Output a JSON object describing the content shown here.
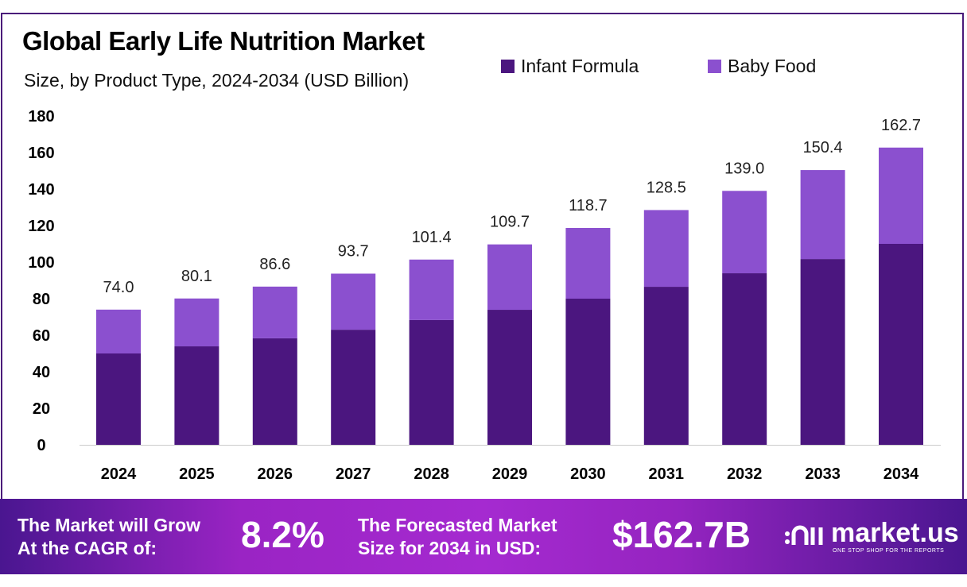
{
  "title": "Global Early Life Nutrition Market",
  "subtitle": "Size, by Product Type, 2024-2034 (USD Billion)",
  "colors": {
    "infant_formula": "#4b167f",
    "baby_food": "#8b50cf"
  },
  "chart_data": {
    "type": "bar",
    "stacked": true,
    "title": "Global Early Life Nutrition Market",
    "subtitle": "Size, by Product Type, 2024-2034 (USD Billion)",
    "categories": [
      "2024",
      "2025",
      "2026",
      "2027",
      "2028",
      "2029",
      "2030",
      "2031",
      "2032",
      "2033",
      "2034"
    ],
    "series": [
      {
        "name": "Infant Formula",
        "values": [
          50.0,
          53.9,
          58.3,
          63.0,
          68.3,
          73.9,
          80.0,
          86.5,
          93.9,
          101.7,
          110.0
        ]
      },
      {
        "name": "Baby Food",
        "values": [
          24.0,
          26.2,
          28.3,
          30.7,
          33.1,
          35.8,
          38.7,
          42.0,
          45.1,
          48.7,
          52.7
        ]
      }
    ],
    "totals": [
      "74.0",
      "80.1",
      "86.6",
      "93.7",
      "101.4",
      "109.7",
      "118.7",
      "128.5",
      "139.0",
      "150.4",
      "162.7"
    ],
    "yticks": [
      "0",
      "20",
      "40",
      "60",
      "80",
      "100",
      "120",
      "140",
      "160",
      "180"
    ],
    "ylim": [
      0,
      180
    ],
    "xlabel": "",
    "ylabel": "",
    "grid": false,
    "legend_position": "top-right"
  },
  "footer": {
    "cagr_label_1": "The Market will Grow",
    "cagr_label_2": "At the CAGR of:",
    "cagr_value": "8.2%",
    "forecast_label_1": "The Forecasted Market",
    "forecast_label_2": "Size for 2034 in USD:",
    "forecast_value": "$162.7B",
    "logo_name": "market.us",
    "logo_tagline": "ONE STOP SHOP FOR THE REPORTS"
  }
}
